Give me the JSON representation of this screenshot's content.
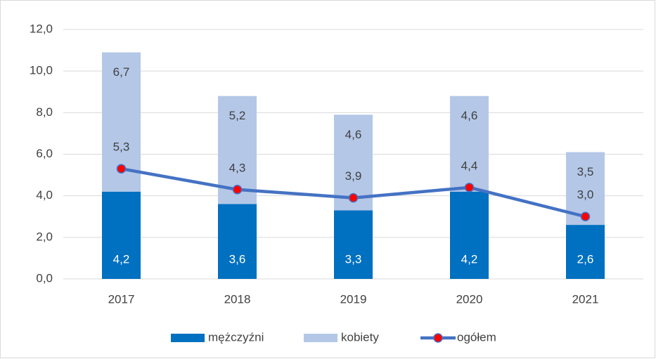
{
  "chart_data": {
    "type": "bar",
    "stacked": true,
    "categories": [
      "2017",
      "2018",
      "2019",
      "2020",
      "2021"
    ],
    "series": [
      {
        "name": "mężczyźni",
        "type": "bar",
        "color": "#0070c0",
        "values": [
          4.2,
          3.6,
          3.3,
          4.2,
          2.6
        ],
        "value_labels": [
          "4,2",
          "3,6",
          "3,3",
          "4,2",
          "2,6"
        ]
      },
      {
        "name": "kobiety",
        "type": "bar",
        "color": "#b4c7e7",
        "values": [
          6.7,
          5.2,
          4.6,
          4.6,
          3.5
        ],
        "value_labels": [
          "6,7",
          "5,2",
          "4,6",
          "4,6",
          "3,5"
        ]
      },
      {
        "name": "ogółem",
        "type": "line",
        "color": "#4472c4",
        "marker_color": "#ff0000",
        "values": [
          5.3,
          4.3,
          3.9,
          4.4,
          3.0
        ],
        "value_labels": [
          "5,3",
          "4,3",
          "3,9",
          "4,4",
          "3,0"
        ]
      }
    ],
    "ylim": [
      0,
      12
    ],
    "yticks": [
      {
        "value": 0,
        "label": "0,0"
      },
      {
        "value": 2,
        "label": "2,0"
      },
      {
        "value": 4,
        "label": "4,0"
      },
      {
        "value": 6,
        "label": "6,0"
      },
      {
        "value": 8,
        "label": "8,0"
      },
      {
        "value": 10,
        "label": "10,0"
      },
      {
        "value": 12,
        "label": "12,0"
      }
    ],
    "grid": true,
    "legend": "bottom"
  }
}
